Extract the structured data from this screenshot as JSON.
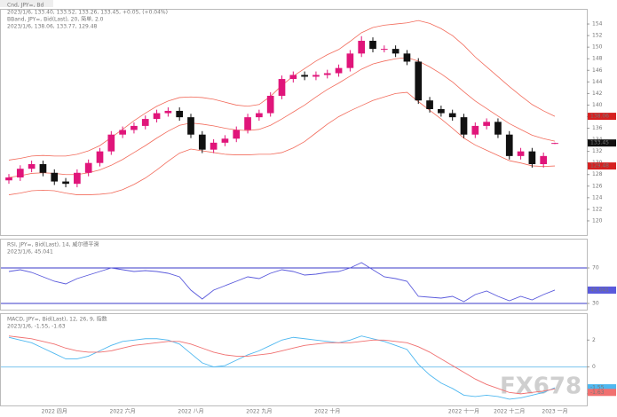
{
  "watermark": "FX678",
  "chart_data": [
    {
      "type": "candlestick",
      "annotations": [
        {
          "text": "Cnd, JPY=, Bd",
          "color": "#333333"
        },
        {
          "text": "2023/1/6, 133.40, 133.52, 133.26, 133.45, +0.05, (+0.04%)",
          "color": "#2255cc"
        },
        {
          "text": "BBand, JPY=, Bid(Last), 20, 简单, 2.0",
          "color": "#e03030"
        },
        {
          "text": "2023/1/6, 138.06, 133.77, 129.48",
          "color": "#e03030"
        }
      ],
      "categories": [
        null,
        null,
        null,
        null,
        "2022 四月",
        null,
        null,
        null,
        null,
        null,
        "2022 六月",
        null,
        null,
        null,
        null,
        null,
        "2022 八月",
        null,
        null,
        null,
        null,
        null,
        "2022 九月",
        null,
        null,
        null,
        null,
        null,
        "2022 十月",
        null,
        null,
        null,
        null,
        null,
        null,
        null,
        null,
        null,
        null,
        null,
        "2022 十一月",
        null,
        null,
        null,
        "2022 十二月",
        null,
        null,
        null,
        "2023 一月"
      ],
      "open": [
        127,
        127.5,
        129,
        129.8,
        128.3,
        126.8,
        126.4,
        128.3,
        130,
        132,
        134.9,
        135.7,
        136.4,
        137.6,
        138.6,
        139,
        137.9,
        134.9,
        132.3,
        133.5,
        134.2,
        135.7,
        137.9,
        138.6,
        141.6,
        144.5,
        145.2,
        144.9,
        145.2,
        145.5,
        146.4,
        148.9,
        151.1,
        149.7,
        149.7,
        148.9,
        147.5,
        140.8,
        139.3,
        138.6,
        137.9,
        134.9,
        136.4,
        137.1,
        134.9,
        131.2,
        132,
        129.8,
        133.4
      ],
      "high": [
        128.1,
        129.6,
        130.4,
        130.4,
        128.9,
        127.4,
        128.9,
        130.6,
        132.6,
        135.5,
        136.3,
        137,
        138.2,
        139.2,
        139.6,
        139.6,
        138.5,
        135.5,
        134.1,
        134.8,
        136.3,
        138.5,
        139.2,
        142.2,
        145.1,
        145.8,
        145.8,
        145.8,
        146.1,
        147,
        149.5,
        151.9,
        151.7,
        150.3,
        150.3,
        149.5,
        148.1,
        141.4,
        139.9,
        139.2,
        138.5,
        137,
        137.7,
        137.7,
        135.5,
        132.6,
        132.6,
        131.8,
        133.52
      ],
      "low": [
        126.4,
        126.9,
        128.4,
        127.7,
        126.2,
        125.8,
        125.8,
        127.7,
        129.4,
        131.4,
        134.3,
        135.1,
        135.8,
        137,
        138,
        137.3,
        134.3,
        131.7,
        131.7,
        132.9,
        133.6,
        135.1,
        137.3,
        138,
        141,
        143.9,
        144.3,
        144.3,
        144.6,
        144.9,
        145.8,
        148.3,
        149.1,
        149.1,
        148.3,
        146.9,
        140.2,
        138.7,
        138,
        137.3,
        134.3,
        134.3,
        135.8,
        134.3,
        130.6,
        130.6,
        129.2,
        129.2,
        133.26
      ],
      "close": [
        127.5,
        129,
        129.8,
        128.3,
        126.8,
        126.4,
        128.3,
        130,
        132,
        134.9,
        135.7,
        136.4,
        137.6,
        138.6,
        139,
        137.9,
        134.9,
        132.3,
        133.5,
        134.2,
        135.7,
        137.9,
        138.6,
        141.6,
        144.5,
        145.2,
        144.9,
        145.2,
        145.5,
        146.4,
        148.9,
        151.1,
        149.7,
        149.7,
        148.9,
        147.5,
        140.8,
        139.3,
        138.6,
        137.9,
        134.9,
        136.4,
        137.1,
        134.9,
        131.2,
        132,
        129.8,
        131.2,
        133.45
      ],
      "up_color": "#e0157a",
      "down_color": "#111111",
      "bands": [
        {
          "color": "#f26b5b",
          "values": [
            130.5,
            130.8,
            131.2,
            131.3,
            131.2,
            131.2,
            131.5,
            132.1,
            133,
            134.4,
            135.8,
            137.3,
            138.6,
            139.8,
            140.7,
            141.3,
            141.4,
            141.3,
            141,
            140.5,
            140,
            139.8,
            140.1,
            141.5,
            143.4,
            145,
            146.3,
            147.6,
            148.7,
            149.6,
            151,
            152.5,
            153.4,
            153.8,
            154,
            154.2,
            154.6,
            154.1,
            153.2,
            152,
            150.3,
            148.3,
            146.6,
            144.9,
            143.2,
            141.6,
            140.1,
            139,
            138.06
          ]
        },
        {
          "color": "#f26b5b",
          "values": [
            127.5,
            127.8,
            128.2,
            128.3,
            128.2,
            128,
            128,
            128.3,
            128.8,
            129.6,
            130.6,
            131.8,
            133,
            134.3,
            135.5,
            136.5,
            136.9,
            136.7,
            136.4,
            136,
            135.7,
            135.6,
            135.8,
            136.5,
            137.6,
            138.8,
            140,
            141.4,
            142.7,
            143.8,
            145,
            146.2,
            147.1,
            147.6,
            148,
            148.2,
            147.6,
            146.6,
            145.4,
            144,
            142.3,
            140.7,
            139.4,
            138.1,
            136.8,
            135.8,
            134.8,
            134.2,
            133.77
          ]
        },
        {
          "color": "#f26b5b",
          "values": [
            124.5,
            124.8,
            125.2,
            125.3,
            125.2,
            124.8,
            124.5,
            124.5,
            124.6,
            124.8,
            125.4,
            126.3,
            127.4,
            128.8,
            130.3,
            131.7,
            132.4,
            132.1,
            131.8,
            131.5,
            131.4,
            131.4,
            131.5,
            131.5,
            131.8,
            132.6,
            133.7,
            135.2,
            136.7,
            138,
            139,
            139.9,
            140.8,
            141.4,
            142,
            142.2,
            140.6,
            139.1,
            137.6,
            136,
            134.3,
            133.1,
            132.2,
            131.3,
            130.4,
            130,
            129.5,
            129.4,
            129.48
          ]
        }
      ],
      "ylim": [
        118,
        156
      ],
      "yticks": [
        120,
        122,
        124,
        126,
        128,
        130,
        132,
        134,
        136,
        138,
        140,
        142,
        144,
        146,
        148,
        150,
        152,
        154
      ],
      "grid": false
    },
    {
      "type": "line",
      "annotations": [
        {
          "text": "RSI, JPY=, Bid(Last), 14, 威尔德平滑",
          "color": "#333333"
        },
        {
          "text": "2023/1/6, 45.041",
          "color": "#2255cc"
        }
      ],
      "series": [
        {
          "color": "#5a5adc",
          "values": [
            66,
            68,
            65,
            60,
            55,
            52,
            58,
            62,
            66,
            70,
            68,
            66,
            67,
            66,
            64,
            60,
            45,
            35,
            45,
            50,
            55,
            60,
            58,
            64,
            68,
            66,
            62,
            63,
            65,
            66,
            70,
            76,
            68,
            60,
            58,
            55,
            38,
            37,
            36,
            38,
            32,
            40,
            44,
            38,
            33,
            38,
            34,
            40,
            45.041
          ]
        }
      ],
      "levels": [
        70,
        30
      ],
      "level_color": "#3a3ac8",
      "ylim": [
        25,
        100
      ],
      "yticks": [
        30,
        70
      ]
    },
    {
      "type": "line",
      "annotations": [
        {
          "text": "MACD, JPY=, Bid(Last), 12, 26, 9, 指数",
          "color": "#333333"
        },
        {
          "text": "2023/1/6, -1.55, -1.63",
          "color": "#2255cc"
        }
      ],
      "series": [
        {
          "color": "#4fb8f0",
          "values": [
            2.2,
            2.0,
            1.8,
            1.4,
            1.0,
            0.6,
            0.6,
            0.8,
            1.2,
            1.6,
            1.9,
            2.0,
            2.1,
            2.1,
            2.0,
            1.7,
            1.0,
            0.3,
            0,
            0.1,
            0.5,
            0.9,
            1.2,
            1.6,
            2.0,
            2.2,
            2.1,
            2.0,
            1.9,
            1.8,
            2.0,
            2.3,
            2.1,
            1.9,
            1.6,
            1.3,
            0.2,
            -0.6,
            -1.2,
            -1.6,
            -2.1,
            -2.2,
            -2.1,
            -2.2,
            -2.4,
            -2.3,
            -2.1,
            -1.9,
            -1.55
          ]
        },
        {
          "color": "#f07070",
          "values": [
            2.3,
            2.2,
            2.1,
            1.9,
            1.7,
            1.4,
            1.2,
            1.1,
            1.1,
            1.2,
            1.4,
            1.6,
            1.7,
            1.8,
            1.9,
            1.9,
            1.7,
            1.4,
            1.1,
            0.9,
            0.8,
            0.8,
            0.9,
            1.0,
            1.2,
            1.4,
            1.6,
            1.7,
            1.8,
            1.8,
            1.8,
            1.9,
            2.0,
            2.0,
            1.9,
            1.8,
            1.5,
            1.1,
            0.6,
            0.1,
            -0.4,
            -0.9,
            -1.3,
            -1.6,
            -1.9,
            -2.0,
            -1.9,
            -1.8,
            -1.63
          ]
        }
      ],
      "levels": [
        0
      ],
      "level_color": "#7cc4ee",
      "ylim": [
        -2.8,
        3.8
      ],
      "yticks": [
        -2,
        0,
        2
      ]
    }
  ]
}
